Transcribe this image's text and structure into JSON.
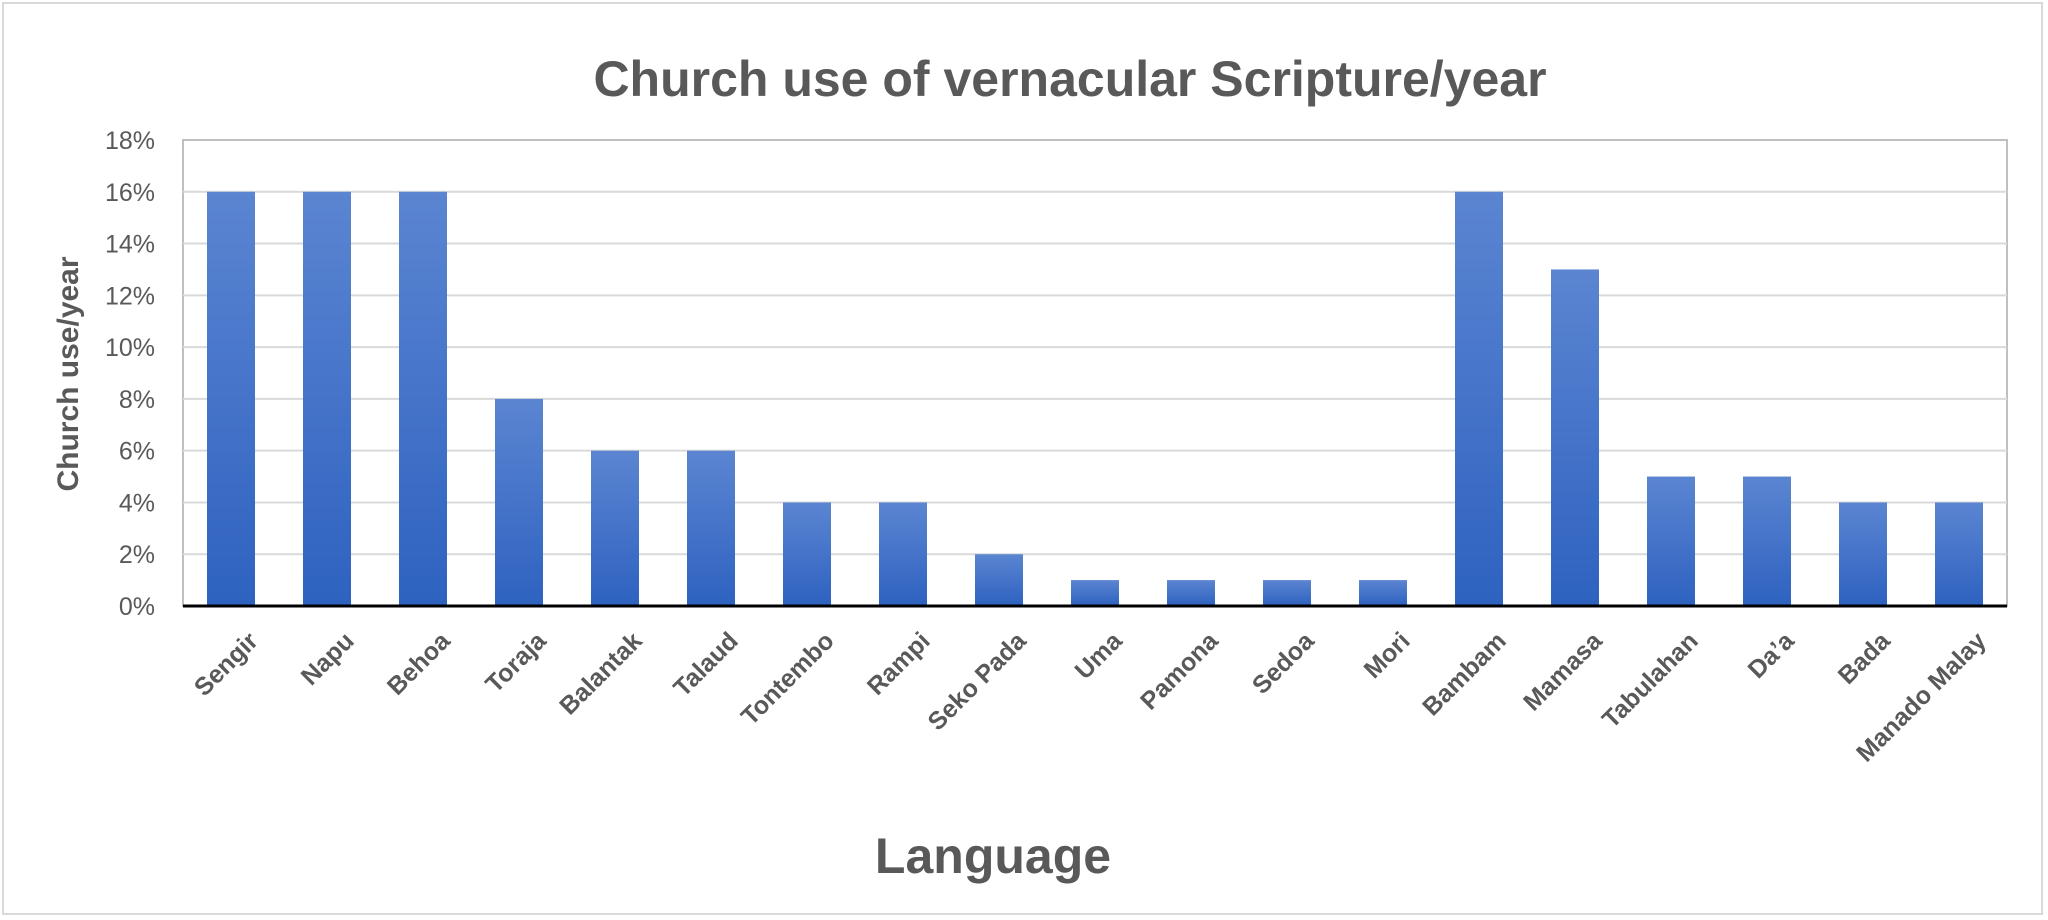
{
  "chart_data": {
    "type": "bar",
    "title": "Church use of vernacular Scripture/year",
    "xlabel": "Language",
    "ylabel": "Church use/year",
    "categories": [
      "Sengir",
      "Napu",
      "Behoa",
      "Toraja",
      "Balantak",
      "Talaud",
      "Tontembo",
      "Rampi",
      "Seko Pada",
      "Uma",
      "Pamona",
      "Sedoa",
      "Mori",
      "Bambam",
      "Mamasa",
      "Tabulahan",
      "Da’a",
      "Bada",
      "Manado Malay"
    ],
    "values": [
      16,
      16,
      16,
      8,
      6,
      6,
      4,
      4,
      2,
      1,
      1,
      1,
      1,
      16,
      13,
      5,
      5,
      4,
      4
    ],
    "ylim": [
      0,
      18
    ],
    "yticks": [
      "0%",
      "2%",
      "4%",
      "6%",
      "8%",
      "10%",
      "12%",
      "14%",
      "16%",
      "18%"
    ],
    "grid": true,
    "legend": "none",
    "colors": {
      "bar_top": "#5b85d1",
      "bar_bottom": "#2e62c0",
      "grid": "#d9d9d9",
      "axis": "#000000",
      "text": "#595959"
    }
  }
}
